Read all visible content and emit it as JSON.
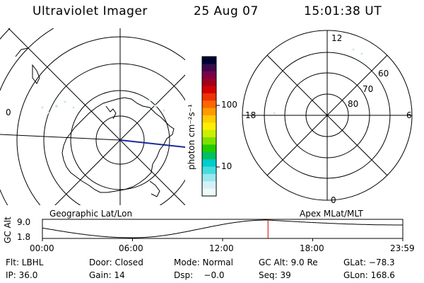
{
  "header": {
    "title": "Ultraviolet Imager",
    "date": "25 Aug 07",
    "time": "15:01:38 UT"
  },
  "left_map": {
    "caption": "Geographic Lat/Lon",
    "edge_label": "0"
  },
  "colorbar": {
    "unit_label": "photon cm⁻²s⁻¹",
    "ticks": [
      {
        "value": 100,
        "label": "100"
      },
      {
        "value": 10,
        "label": "10"
      }
    ],
    "colors": [
      "#000033",
      "#3a0a4a",
      "#7a004a",
      "#a0001a",
      "#d40000",
      "#ee3300",
      "#ff6600",
      "#ff9900",
      "#ffcc00",
      "#ffee00",
      "#c8f000",
      "#7ee000",
      "#22cc00",
      "#00c060",
      "#00cccc",
      "#44dddd",
      "#99e8ee",
      "#d4f2f6",
      "#eefafc"
    ]
  },
  "right_map": {
    "caption": "Apex MLat/MLT",
    "mlt_labels": {
      "top": "12",
      "left": "18",
      "right": "6",
      "bottom": "0"
    },
    "mlat_labels": [
      "60",
      "70",
      "80"
    ]
  },
  "altitude_track": {
    "ylabel": "GC Alt",
    "y_ticks": [
      "9.0",
      "1.8"
    ],
    "x_ticks": [
      "00:00",
      "06:00",
      "12:00",
      "18:00",
      "23:59"
    ],
    "current_time_fraction": 0.626,
    "current_marker_color": "#cc0000"
  },
  "footer": {
    "filter": "Flt: LBHL",
    "door": "Door: Closed",
    "mode": "Mode: Normal",
    "gc_alt": "GC Alt: 9.0 Re",
    "glat": "GLat: −78.3",
    "ip": "IP: 36.0",
    "gain": "Gain: 14",
    "dsp": "Dsp:    −0.0",
    "seq": "Seq: 39",
    "glon": "GLon: 168.6"
  }
}
